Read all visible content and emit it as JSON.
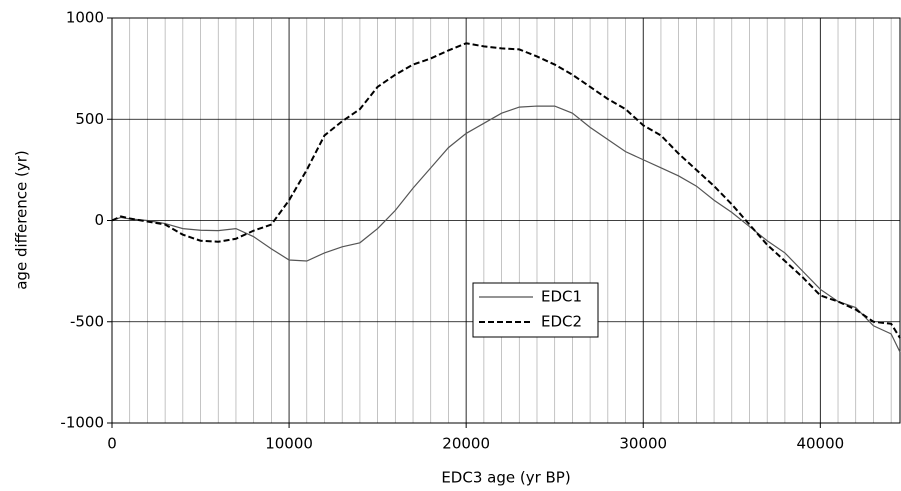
{
  "chart_data": {
    "type": "line",
    "x_label": "EDC3 age (yr BP)",
    "y_label": "age difference (yr)",
    "x": [
      0,
      500,
      1000,
      2000,
      3000,
      4000,
      5000,
      6000,
      7000,
      8000,
      9000,
      10000,
      11000,
      12000,
      13000,
      14000,
      15000,
      16000,
      17000,
      18000,
      19000,
      20000,
      21000,
      22000,
      23000,
      24000,
      25000,
      26000,
      27000,
      28000,
      29000,
      30000,
      31000,
      32000,
      33000,
      34000,
      35000,
      36000,
      37000,
      38000,
      39000,
      40000,
      41000,
      42000,
      43000,
      44000,
      44500
    ],
    "series": [
      {
        "name": "EDC1",
        "color": "#555555",
        "style": "solid",
        "values": [
          0,
          15,
          8,
          0,
          -15,
          -40,
          -48,
          -50,
          -40,
          -80,
          -140,
          -195,
          -200,
          -160,
          -130,
          -110,
          -40,
          50,
          160,
          260,
          360,
          430,
          480,
          530,
          560,
          565,
          565,
          530,
          460,
          400,
          340,
          300,
          260,
          220,
          170,
          100,
          40,
          -30,
          -100,
          -160,
          -250,
          -340,
          -400,
          -430,
          -520,
          -560,
          -650
        ]
      },
      {
        "name": "EDC2",
        "color": "#000000",
        "style": "dashed",
        "values": [
          0,
          20,
          10,
          -5,
          -20,
          -70,
          -100,
          -105,
          -90,
          -50,
          -20,
          100,
          250,
          420,
          490,
          550,
          660,
          720,
          770,
          800,
          840,
          875,
          860,
          850,
          845,
          810,
          770,
          720,
          660,
          600,
          550,
          470,
          420,
          330,
          250,
          170,
          80,
          -20,
          -120,
          -200,
          -280,
          -370,
          -400,
          -440,
          -500,
          -510,
          -580
        ]
      }
    ],
    "xlim": [
      0,
      44500
    ],
    "xticks": [
      0,
      10000,
      20000,
      30000,
      40000
    ],
    "ylim": [
      -1000,
      1000
    ],
    "yticks": [
      -1000,
      -500,
      0,
      500,
      1000
    ],
    "x_minor_grid_step": 1000,
    "grid": true,
    "legend": "center"
  }
}
